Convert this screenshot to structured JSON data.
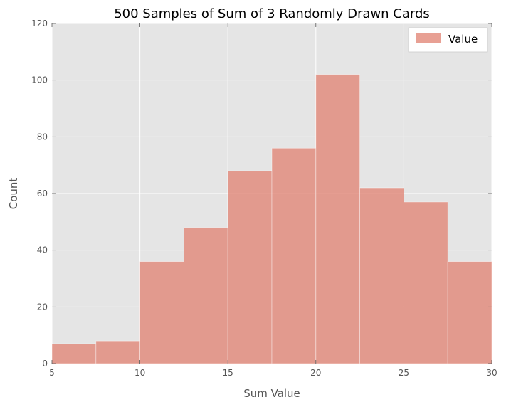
{
  "chart_data": {
    "type": "bar",
    "title": "500 Samples of Sum of 3 Randomly Drawn Cards",
    "xlabel": "Sum Value",
    "ylabel": "Count",
    "xlim": [
      5,
      30
    ],
    "ylim": [
      0,
      120
    ],
    "xticks": [
      5,
      10,
      15,
      20,
      25,
      30
    ],
    "yticks": [
      0,
      20,
      40,
      60,
      80,
      100,
      120
    ],
    "bin_edges": [
      5,
      7.5,
      10,
      12.5,
      15,
      17.5,
      20,
      22.5,
      25,
      27.5,
      30
    ],
    "series": [
      {
        "name": "Value",
        "color": "#e08070",
        "values": [
          7,
          8,
          36,
          48,
          68,
          76,
          102,
          62,
          57,
          36
        ]
      }
    ],
    "grid": true,
    "legend_position": "top-right",
    "background_color": "#e5e5e5",
    "grid_color": "#ffffff"
  }
}
